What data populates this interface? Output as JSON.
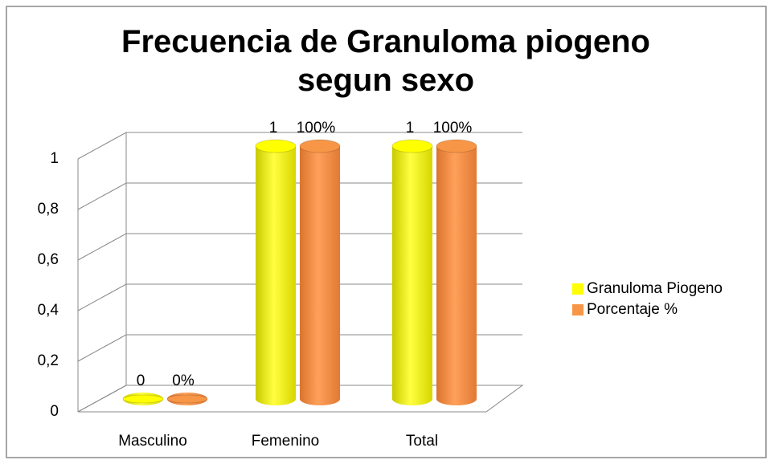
{
  "chart_data": {
    "type": "bar3d",
    "title": "Frecuencia de  Granuloma piogeno segun sexo",
    "categories": [
      "Masculino",
      "Femenino",
      "Total"
    ],
    "series": [
      {
        "name": "Granuloma Piogeno",
        "color": "#ffff00",
        "values": [
          0,
          1,
          1
        ]
      },
      {
        "name": "Porcentaje %",
        "color": "#f79646",
        "values": [
          0,
          1,
          1
        ],
        "value_labels": [
          "0%",
          "100%",
          "100%"
        ]
      }
    ],
    "ylim": [
      0,
      1
    ],
    "yticks": [
      0,
      {
        "value": 0.2,
        "label": "0,2"
      },
      {
        "value": 0.4,
        "label": "0,4"
      },
      {
        "value": 0.6,
        "label": "0,6"
      },
      {
        "value": 0.8,
        "label": "0,8"
      },
      1
    ],
    "grid": true,
    "legend": "right"
  }
}
